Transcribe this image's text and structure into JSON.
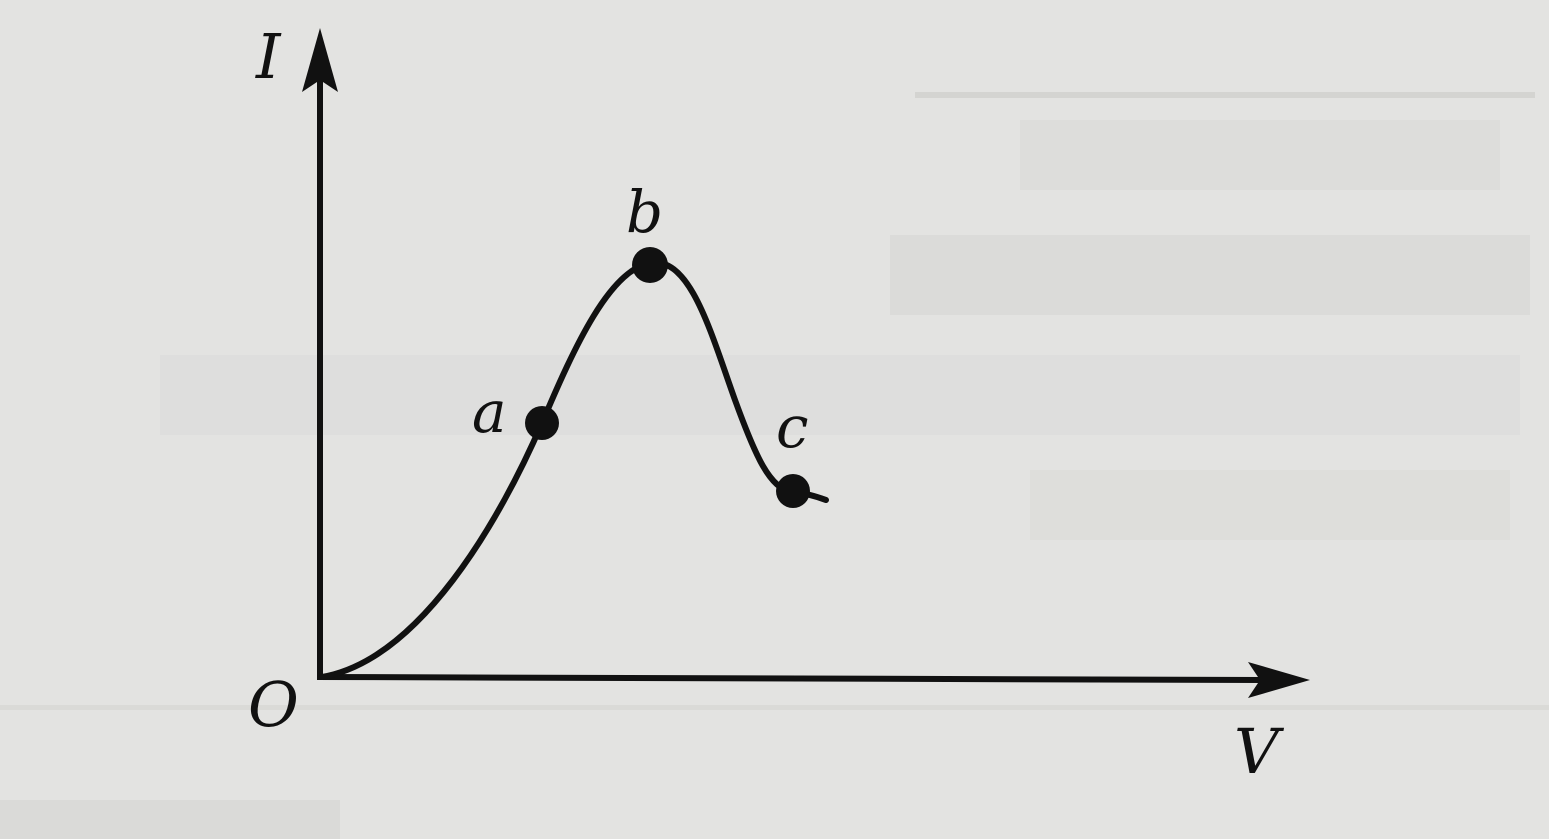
{
  "diagram": {
    "axes": {
      "y_label": "I",
      "x_label": "V",
      "origin_label": "O"
    },
    "points": [
      {
        "id": "a",
        "label": "a"
      },
      {
        "id": "b",
        "label": "b"
      },
      {
        "id": "c",
        "label": "c"
      }
    ]
  },
  "colors": {
    "paper": "#e3e3e1",
    "ink": "#111111",
    "bleed_through": "#b9b9b6"
  }
}
